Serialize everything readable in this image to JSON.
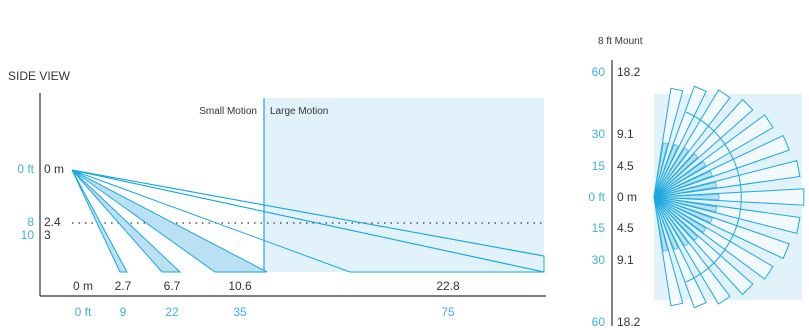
{
  "mount_label": "8 ft Mount",
  "side_view": {
    "title": "SIDE VIEW",
    "zone_labels": {
      "small": "Small Motion",
      "large": "Large Motion"
    },
    "left_axis": {
      "top_m": "0 m",
      "top_ft": "0 ft",
      "mid_m": "2.4",
      "mid_ft": "8",
      "bot_m": "3",
      "bot_ft": "10"
    },
    "bottom_axis_m": [
      "0 m",
      "2.7",
      "6.7",
      "10.6",
      "22.8"
    ],
    "bottom_axis_ft": [
      "0 ft",
      "9",
      "22",
      "35",
      "75"
    ]
  },
  "top_view": {
    "axis_m": [
      "18.2",
      "9.1",
      "4.5",
      "0 m",
      "4.5",
      "9.1",
      "18.2"
    ],
    "axis_ft": [
      "60",
      "30",
      "15",
      "0 ft",
      "15",
      "30",
      "60"
    ]
  },
  "colors": {
    "line": "#1aa9de",
    "fill_light": "#e2f2fa",
    "fill_mid": "#b9e1f3",
    "text_dark": "#333333",
    "text_cyan": "#3fb2dc"
  }
}
